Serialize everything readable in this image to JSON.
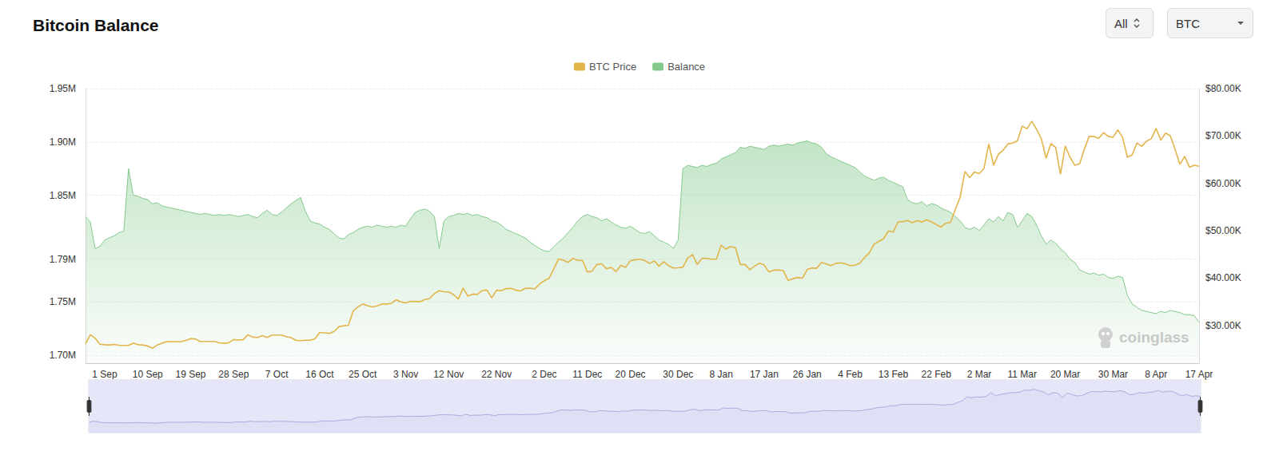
{
  "chart_data": {
    "type": "line",
    "title": "Bitcoin Balance",
    "categories": [
      null,
      null,
      null,
      null,
      "1 Sep",
      null,
      null,
      null,
      null,
      null,
      null,
      null,
      null,
      "10 Sep",
      null,
      null,
      null,
      null,
      null,
      null,
      null,
      null,
      "19 Sep",
      null,
      null,
      null,
      null,
      null,
      null,
      null,
      null,
      "28 Sep",
      null,
      null,
      null,
      null,
      null,
      null,
      null,
      null,
      "7 Oct",
      null,
      null,
      null,
      null,
      null,
      null,
      null,
      null,
      "16 Oct",
      null,
      null,
      null,
      null,
      null,
      null,
      null,
      null,
      "25 Oct",
      null,
      null,
      null,
      null,
      null,
      null,
      null,
      null,
      "3 Nov",
      null,
      null,
      null,
      null,
      null,
      null,
      null,
      null,
      "12 Nov",
      null,
      null,
      null,
      null,
      null,
      null,
      null,
      null,
      null,
      "22 Nov",
      null,
      null,
      null,
      null,
      null,
      null,
      null,
      null,
      null,
      "2 Dec",
      null,
      null,
      null,
      null,
      null,
      null,
      null,
      null,
      "11 Dec",
      null,
      null,
      null,
      null,
      null,
      null,
      null,
      null,
      "20 Dec",
      null,
      null,
      null,
      null,
      null,
      null,
      null,
      null,
      null,
      "30 Dec",
      null,
      null,
      null,
      null,
      null,
      null,
      null,
      null,
      "8 Jan",
      null,
      null,
      null,
      null,
      null,
      null,
      null,
      null,
      "17 Jan",
      null,
      null,
      null,
      null,
      null,
      null,
      null,
      null,
      "26 Jan",
      null,
      null,
      null,
      null,
      null,
      null,
      null,
      null,
      "4 Feb",
      null,
      null,
      null,
      null,
      null,
      null,
      null,
      null,
      "13 Feb",
      null,
      null,
      null,
      null,
      null,
      null,
      null,
      null,
      "22 Feb",
      null,
      null,
      null,
      null,
      null,
      null,
      null,
      null,
      "2 Mar",
      null,
      null,
      null,
      null,
      null,
      null,
      null,
      null,
      "11 Mar",
      null,
      null,
      null,
      null,
      null,
      null,
      null,
      null,
      "20 Mar",
      null,
      null,
      null,
      null,
      null,
      null,
      null,
      null,
      null,
      "30 Mar",
      null,
      null,
      null,
      null,
      null,
      null,
      null,
      null,
      "8 Apr",
      null,
      null,
      null,
      null,
      null,
      null,
      null,
      null,
      "17 Apr"
    ],
    "series": [
      {
        "name": "BTC Price",
        "type": "line",
        "color": "#e2b54a",
        "axis": "y2",
        "values": [
          26100,
          28000,
          27300,
          26000,
          25900,
          25850,
          25950,
          25800,
          25750,
          25750,
          26250,
          25900,
          25850,
          25650,
          25150,
          25850,
          26250,
          26550,
          26600,
          26550,
          26550,
          26800,
          27200,
          27100,
          26600,
          26600,
          26600,
          26600,
          26300,
          26200,
          26350,
          27000,
          26900,
          27000,
          28000,
          27500,
          27450,
          27800,
          27450,
          27950,
          27950,
          27950,
          27600,
          27400,
          26850,
          26750,
          26850,
          26850,
          27150,
          28500,
          28400,
          28300,
          28700,
          29700,
          29900,
          30000,
          33000,
          33900,
          34500,
          34150,
          33900,
          34100,
          34500,
          34500,
          34650,
          35400,
          34950,
          34750,
          35050,
          35050,
          35000,
          35450,
          35650,
          36700,
          37300,
          37100,
          37050,
          36500,
          35550,
          37900,
          36150,
          36600,
          36550,
          37350,
          37450,
          35800,
          37400,
          37300,
          37750,
          37800,
          37450,
          37250,
          37800,
          37850,
          37700,
          38700,
          39450,
          39950,
          41950,
          44050,
          43750,
          43300,
          44150,
          43700,
          43700,
          41250,
          41450,
          42850,
          43000,
          41950,
          42250,
          41350,
          42650,
          42250,
          43650,
          43850,
          43950,
          43700,
          43050,
          43600,
          42500,
          43450,
          42600,
          42100,
          42150,
          42300,
          44200,
          44950,
          42850,
          44150,
          44150,
          43950,
          43950,
          46950,
          46100,
          46650,
          46350,
          42850,
          42850,
          41750,
          42500,
          43150,
          42750,
          41250,
          41650,
          41700,
          41550,
          39500,
          39850,
          40100,
          39950,
          41800,
          42100,
          42050,
          43300,
          42950,
          42600,
          43100,
          43200,
          43000,
          42600,
          42700,
          43100,
          44350,
          45300,
          47150,
          47750,
          48300,
          49950,
          49700,
          51800,
          51900,
          52150,
          51650,
          52150,
          51800,
          52300,
          51850,
          51300,
          50750,
          51550,
          51750,
          54500,
          57050,
          62500,
          61200,
          62400,
          62050,
          63150,
          68300,
          63800,
          66100,
          67000,
          68300,
          68500,
          69000,
          72100,
          71500,
          73100,
          71400,
          69400,
          65300,
          68400,
          67600,
          61900,
          67900,
          65500,
          63800,
          64100,
          67200,
          69900,
          69900,
          69500,
          70700,
          69900,
          69700,
          71300,
          69700,
          65500,
          66000,
          68500,
          67800,
          68900,
          69400,
          71600,
          69100,
          70600,
          70000,
          67100,
          64000,
          65700,
          63400,
          63800,
          63600
        ]
      },
      {
        "name": "Balance",
        "type": "area",
        "color": "#84c98c",
        "values": [
          1830000,
          1825000,
          1800000,
          1802000,
          1808000,
          1810000,
          1812000,
          1815000,
          1816000,
          1875000,
          1850000,
          1849000,
          1847000,
          1846000,
          1842000,
          1843000,
          1840000,
          1839000,
          1838000,
          1837000,
          1836000,
          1835000,
          1834000,
          1833000,
          1832000,
          1833000,
          1832000,
          1831000,
          1832000,
          1831000,
          1832000,
          1831000,
          1830000,
          1831000,
          1832000,
          1830000,
          1829000,
          1833000,
          1836000,
          1832000,
          1831000,
          1834000,
          1838000,
          1842000,
          1845000,
          1848000,
          1835000,
          1826000,
          1824000,
          1823000,
          1820000,
          1818000,
          1814000,
          1810000,
          1809000,
          1813000,
          1815000,
          1818000,
          1820000,
          1821000,
          1820000,
          1822000,
          1821000,
          1820000,
          1821000,
          1820000,
          1822000,
          1821000,
          1828000,
          1834000,
          1836000,
          1837000,
          1835000,
          1830000,
          1800000,
          1826000,
          1830000,
          1831000,
          1833000,
          1832000,
          1833000,
          1831000,
          1832000,
          1830000,
          1829000,
          1826000,
          1825000,
          1822000,
          1818000,
          1816000,
          1814000,
          1812000,
          1810000,
          1806000,
          1803000,
          1800000,
          1798000,
          1797000,
          1802000,
          1806000,
          1810000,
          1815000,
          1820000,
          1826000,
          1830000,
          1832000,
          1830000,
          1829000,
          1826000,
          1828000,
          1825000,
          1822000,
          1820000,
          1819000,
          1821000,
          1818000,
          1815000,
          1814000,
          1816000,
          1812000,
          1808000,
          1806000,
          1804000,
          1800000,
          1808000,
          1875000,
          1878000,
          1877000,
          1876000,
          1878000,
          1877000,
          1879000,
          1880000,
          1884000,
          1886000,
          1888000,
          1890000,
          1895000,
          1894000,
          1896000,
          1895000,
          1894000,
          1893000,
          1896000,
          1897000,
          1896000,
          1897000,
          1898000,
          1897000,
          1899000,
          1900000,
          1901000,
          1899000,
          1898000,
          1895000,
          1889000,
          1886000,
          1884000,
          1882000,
          1880000,
          1878000,
          1876000,
          1872000,
          1868000,
          1866000,
          1864000,
          1866000,
          1867000,
          1864000,
          1862000,
          1860000,
          1858000,
          1846000,
          1843000,
          1842000,
          1844000,
          1840000,
          1842000,
          1841000,
          1838000,
          1836000,
          1834000,
          1830000,
          1826000,
          1820000,
          1818000,
          1820000,
          1817000,
          1822000,
          1828000,
          1825000,
          1830000,
          1826000,
          1834000,
          1832000,
          1820000,
          1826000,
          1833000,
          1830000,
          1822000,
          1812000,
          1804000,
          1808000,
          1805000,
          1800000,
          1796000,
          1790000,
          1787000,
          1780000,
          1778000,
          1776000,
          1777000,
          1775000,
          1776000,
          1773000,
          1772000,
          1774000,
          1773000,
          1756000,
          1748000,
          1745000,
          1742000,
          1741000,
          1740000,
          1739000,
          1741000,
          1740000,
          1742000,
          1741000,
          1740000,
          1738000,
          1738000,
          1737000,
          1731000
        ]
      }
    ],
    "ylim": [
      1692500,
      1950000
    ],
    "yticks": [
      {
        "value": 1700000,
        "label": "1.70M"
      },
      {
        "value": 1750000,
        "label": "1.75M"
      },
      {
        "value": 1790000,
        "label": "1.79M"
      },
      {
        "value": 1850000,
        "label": "1.85M"
      },
      {
        "value": 1900000,
        "label": "1.90M"
      },
      {
        "value": 1950000,
        "label": "1.95M"
      }
    ],
    "y2lim": [
      22000,
      80000
    ],
    "y2ticks": [
      {
        "value": 30000,
        "label": "$30.00K"
      },
      {
        "value": 40000,
        "label": "$40.00K"
      },
      {
        "value": 50000,
        "label": "$50.00K"
      },
      {
        "value": 60000,
        "label": "$60.00K"
      },
      {
        "value": 70000,
        "label": "$70.00K"
      },
      {
        "value": 80000,
        "label": "$80.00K"
      }
    ],
    "grid": true,
    "legend": "top"
  },
  "controls": [
    "All",
    "BTC"
  ],
  "watermark": "coinglass"
}
